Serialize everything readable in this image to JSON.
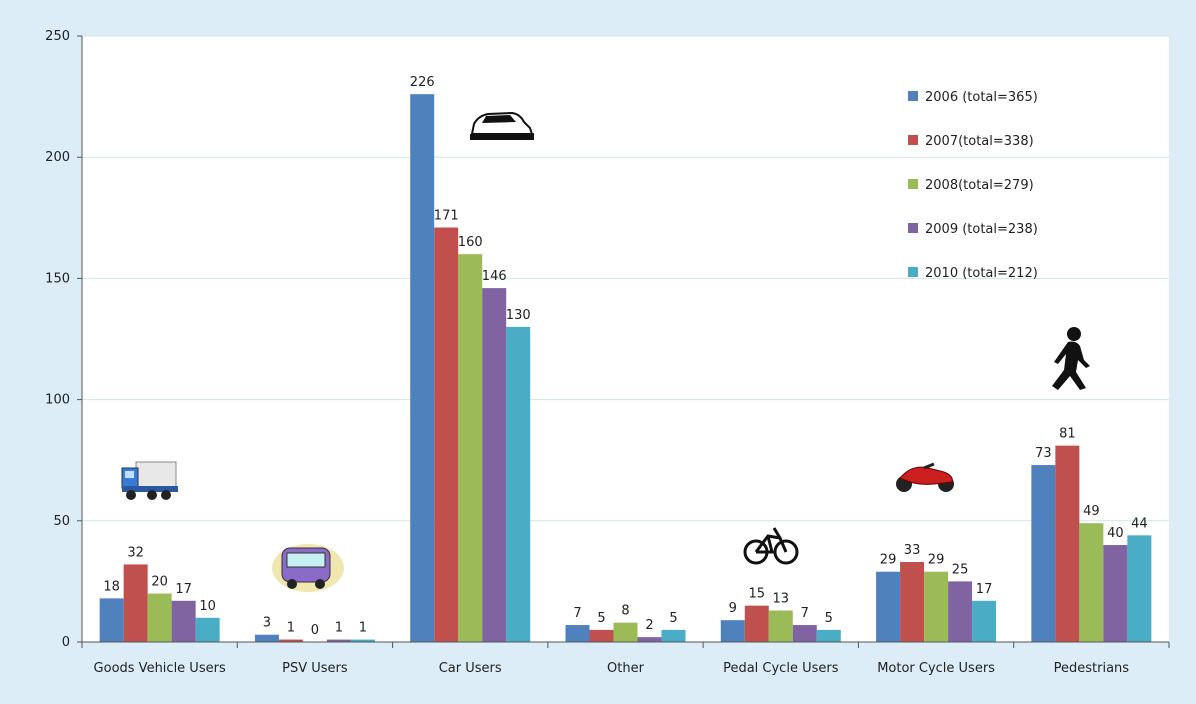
{
  "chart_data": {
    "type": "bar",
    "categories": [
      "Goods Vehicle Users",
      "PSV Users",
      "Car Users",
      "Other",
      "Pedal Cycle Users",
      "Motor Cycle Users",
      "Pedestrians"
    ],
    "series": [
      {
        "name": "2006 (total=365)",
        "color": "#4f81bd",
        "values": [
          18,
          3,
          226,
          7,
          9,
          29,
          73
        ]
      },
      {
        "name": "2007(total=338)",
        "color": "#c0504d",
        "values": [
          32,
          1,
          171,
          5,
          15,
          33,
          81
        ]
      },
      {
        "name": "2008(total=279)",
        "color": "#9bbb59",
        "values": [
          20,
          0,
          160,
          8,
          13,
          29,
          49
        ]
      },
      {
        "name": "2009 (total=238)",
        "color": "#8064a2",
        "values": [
          17,
          1,
          146,
          2,
          7,
          25,
          40
        ]
      },
      {
        "name": "2010 (total=212)",
        "color": "#4bacc6",
        "values": [
          10,
          1,
          130,
          5,
          5,
          17,
          44
        ]
      }
    ],
    "ylim": [
      0,
      250
    ],
    "yticks": [
      0,
      50,
      100,
      150,
      200,
      250
    ],
    "grid": true,
    "legend_position": "top-right",
    "icons": [
      "truck-icon",
      "bus-icon",
      "car-icon",
      "bicycle-icon",
      "motorcycle-icon",
      "pedestrian-icon"
    ]
  }
}
